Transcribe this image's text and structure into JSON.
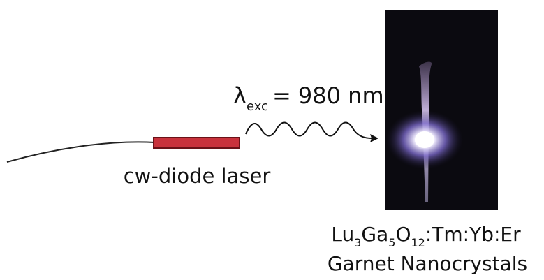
{
  "excitation": {
    "symbol": "λ",
    "subscript": "exc",
    "text": "= 980 nm"
  },
  "laser_label": "cw-diode laser",
  "sample": {
    "formula": [
      "Lu",
      "3",
      "Ga",
      "5",
      "O",
      "12",
      ":Tm:Yb:Er"
    ],
    "name": "Garnet Nanocrystals"
  }
}
